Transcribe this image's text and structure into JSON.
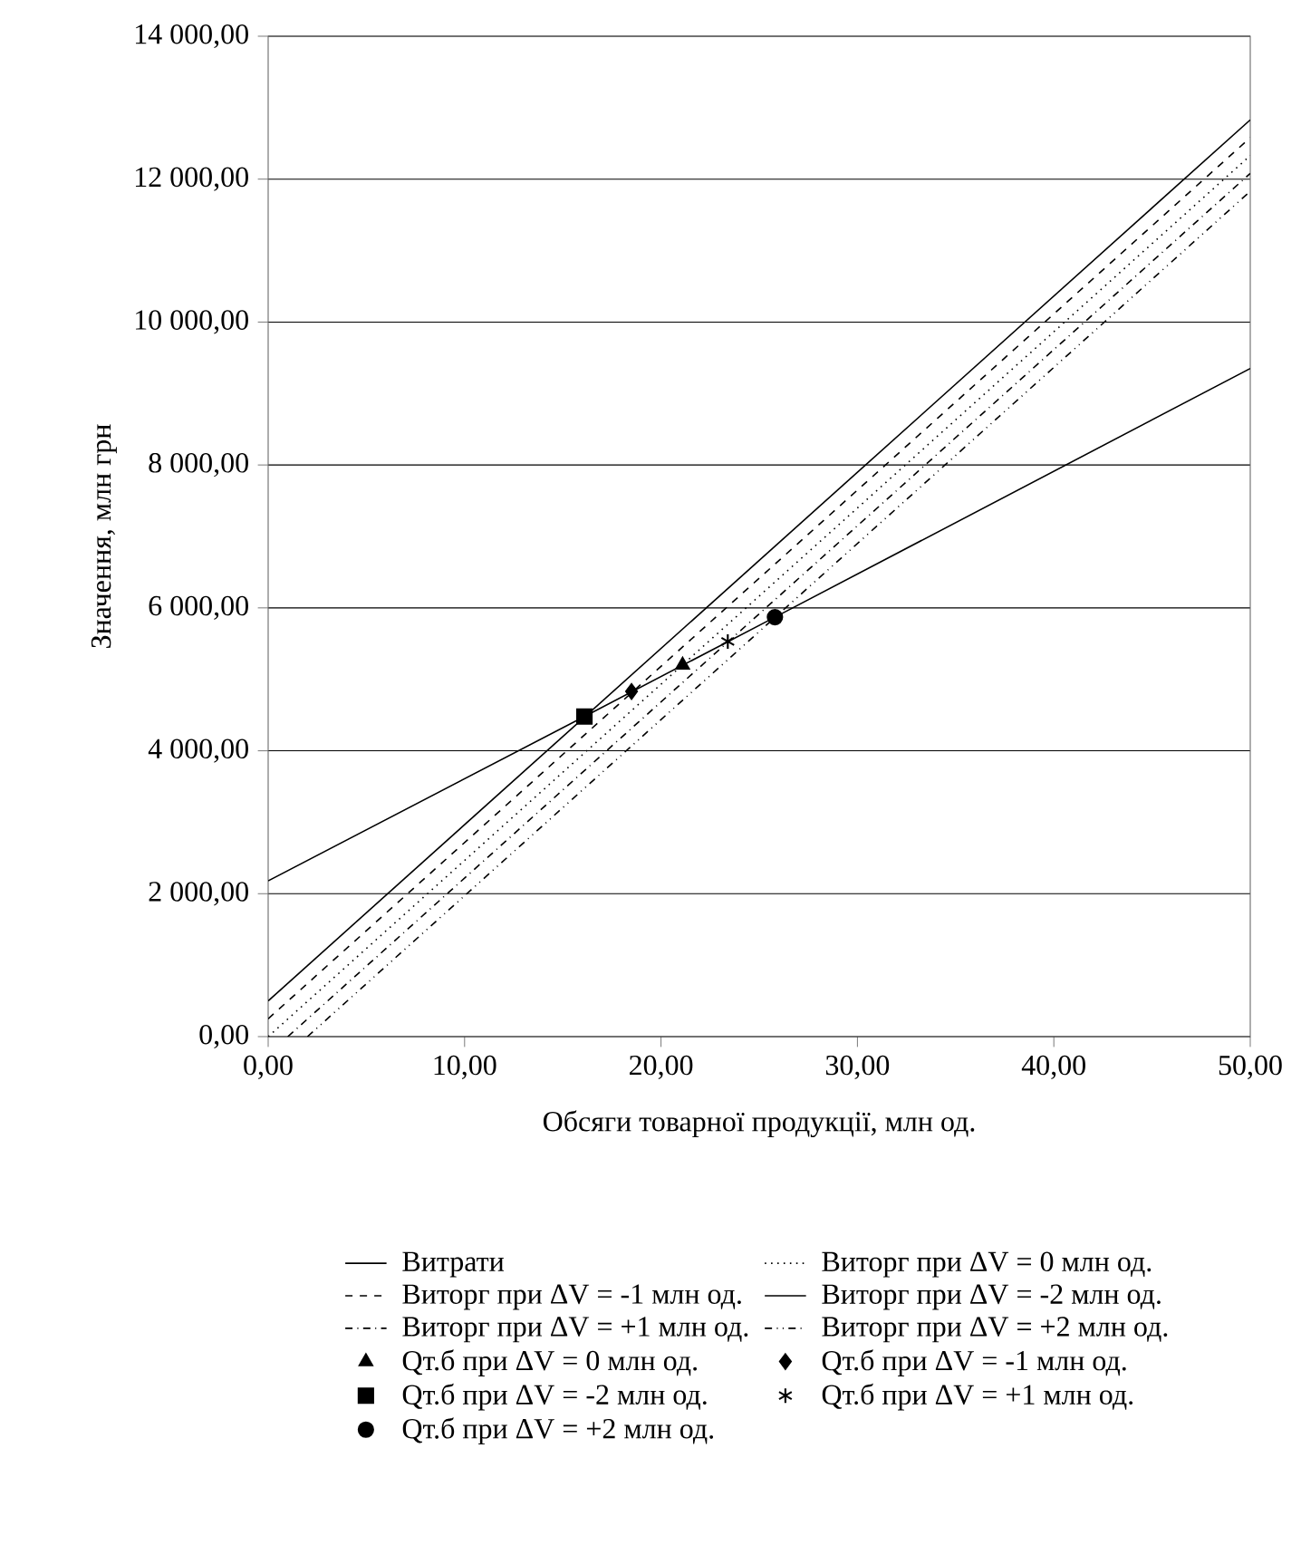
{
  "chart_data": {
    "type": "line",
    "xlabel": "Обсяги товарної продукції, млн од.",
    "ylabel": "Значення, млн грн",
    "xlim": [
      0,
      50
    ],
    "ylim": [
      0,
      14000
    ],
    "xticks": [
      {
        "value": 0,
        "label": "0,00"
      },
      {
        "value": 10,
        "label": "10,00"
      },
      {
        "value": 20,
        "label": "20,00"
      },
      {
        "value": 30,
        "label": "30,00"
      },
      {
        "value": 40,
        "label": "40,00"
      },
      {
        "value": 50,
        "label": "50,00"
      }
    ],
    "yticks": [
      {
        "value": 0,
        "label": "0,00"
      },
      {
        "value": 2000,
        "label": "2 000,00"
      },
      {
        "value": 4000,
        "label": "4 000,00"
      },
      {
        "value": 6000,
        "label": "6 000,00"
      },
      {
        "value": 8000,
        "label": "8 000,00"
      },
      {
        "value": 10000,
        "label": "10 000,00"
      },
      {
        "value": 12000,
        "label": "12 000,00"
      },
      {
        "value": 14000,
        "label": "14 000,00"
      }
    ],
    "grid": "y",
    "legend": "bottom",
    "series": [
      {
        "name": "Витрати",
        "color": "#000000",
        "line_style": "solid",
        "x": [
          0,
          16.1,
          25.8,
          50
        ],
        "values": [
          2180,
          4480,
          5870,
          9350
        ]
      },
      {
        "name": "Виторг при ΔV = 0 млн од.",
        "color": "#000000",
        "line_style": "dotted",
        "x": [
          0,
          50
        ],
        "values": [
          0,
          12330
        ]
      },
      {
        "name": "Виторг при ΔV = -1 млн од.",
        "color": "#000000",
        "line_style": "dashed",
        "x": [
          0,
          50
        ],
        "values": [
          250,
          12580
        ]
      },
      {
        "name": "Виторг при ΔV = -2 млн од.",
        "color": "#000000",
        "line_style": "solid",
        "x": [
          0,
          50
        ],
        "values": [
          500,
          12830
        ]
      },
      {
        "name": "Виторг при ΔV = +1 млн од.",
        "color": "#000000",
        "line_style": "dash-dot",
        "x": [
          1,
          50
        ],
        "values": [
          0,
          12080
        ]
      },
      {
        "name": "Виторг при ΔV = +2 млн од.",
        "color": "#000000",
        "line_style": "dash-dot-dot",
        "x": [
          2,
          50
        ],
        "values": [
          0,
          11830
        ]
      },
      {
        "name": "Qт.б при ΔV = 0 млн од.",
        "type": "scatter",
        "color": "#000000",
        "marker": "triangle",
        "x": [
          21.1
        ],
        "values": [
          5200
        ]
      },
      {
        "name": "Qт.б при ΔV = -1 млн од.",
        "type": "scatter",
        "color": "#000000",
        "marker": "diamond",
        "x": [
          18.5
        ],
        "values": [
          4830
        ]
      },
      {
        "name": "Qт.б при ΔV = -2 млн од.",
        "type": "scatter",
        "color": "#000000",
        "marker": "square",
        "x": [
          16.1
        ],
        "values": [
          4480
        ]
      },
      {
        "name": "Qт.б при ΔV = +1 млн од.",
        "type": "scatter",
        "color": "#000000",
        "marker": "cross",
        "x": [
          23.4
        ],
        "values": [
          5530
        ]
      },
      {
        "name": "Qт.б при ΔV = +2 млн од.",
        "type": "scatter",
        "color": "#000000",
        "marker": "circle",
        "x": [
          25.8
        ],
        "values": [
          5870
        ]
      }
    ]
  }
}
